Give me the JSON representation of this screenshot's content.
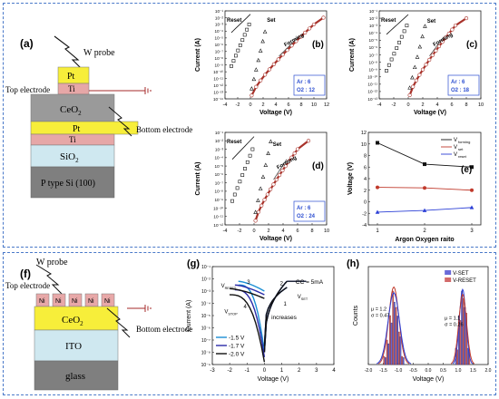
{
  "colors": {
    "frame": "#4a79c9",
    "pt": "#f7ee3a",
    "ti": "#e6a7a7",
    "ceo2": "#9a9a9a",
    "sio2": "#cfe8f0",
    "si": "#7f7f7f",
    "ito": "#cfe8f0",
    "glass": "#7f7f7f",
    "forming": "#a8322a",
    "vforming": "#111111",
    "vset": "#c0392b",
    "vreset": "#2b3fd6",
    "line15": "#1c8fd4",
    "line17": "#2a2aa8",
    "line20": "#111111",
    "hist_set": "#6a6ad8",
    "hist_reset": "#d36a6a",
    "gauss_set": "#2b3fd6",
    "gauss_reset": "#c0392b"
  },
  "panel_a": {
    "label": "(a)",
    "probe": "W probe",
    "top_electrode": "Top electrode",
    "bottom_electrode": "Bottom electrode",
    "layers": [
      "Pt",
      "Ti",
      "CeO",
      "Pt",
      "Ti",
      "SiO",
      "P type Si (100)"
    ],
    "ceo_sub": "2",
    "sio_sub": "2"
  },
  "panel_f": {
    "label": "(f)",
    "probe": "W probe",
    "top_electrode": "Top electrode",
    "bottom_electrode": "Bottom electrode",
    "electrode_label": "Ni",
    "layers": [
      "CeO",
      "ITO",
      "glass"
    ],
    "ceo_sub": "2"
  },
  "iv_panels": [
    {
      "label": "(b)",
      "ar": "Ar : 6",
      "o2": "O2 : 12",
      "set": "Set",
      "reset": "Reset",
      "forming": "Forming",
      "xlabel": "Voltage (V)",
      "ylabel": "Current (A)",
      "xticks": [
        "-4",
        "-2",
        "0",
        "2",
        "4",
        "6",
        "8",
        "10",
        "12"
      ],
      "yticks": [
        "10⁻¹",
        "10⁻²",
        "10⁻³",
        "10⁻⁴",
        "10⁻⁵",
        "10⁻⁶",
        "10⁻⁷",
        "10⁻⁸",
        "10⁻⁹",
        "10⁻¹⁰",
        "10⁻¹¹",
        "10⁻¹²",
        "10⁻¹³",
        "10⁻¹⁴"
      ],
      "form_end": 10,
      "y_plateau": 2
    },
    {
      "label": "(c)",
      "ar": "Ar : 6",
      "o2": "O2 : 18",
      "set": "Set",
      "reset": "Reset",
      "forming": "Forming",
      "xlabel": "Voltage (V)",
      "ylabel": "Current (A)",
      "xticks": [
        "-4",
        "-2",
        "0",
        "2",
        "4",
        "6",
        "8",
        "10"
      ],
      "yticks": [
        "10⁻¹",
        "10⁻²",
        "10⁻³",
        "10⁻⁴",
        "10⁻⁵",
        "10⁻⁶",
        "10⁻⁷",
        "10⁻⁸",
        "10⁻⁹",
        "10⁻¹⁰",
        "10⁻¹¹",
        "10⁻¹²",
        "10⁻¹³"
      ],
      "form_end": 6.5,
      "y_plateau": 2
    },
    {
      "label": "(d)",
      "ar": "Ar : 6",
      "o2": "O2 : 24",
      "set": "Set",
      "reset": "Reset",
      "forming": "Forming",
      "xlabel": "Voltage (V)",
      "ylabel": "Current (A)",
      "xticks": [
        "-4",
        "-2",
        "0",
        "2",
        "4",
        "6",
        "8",
        "10"
      ],
      "yticks": [
        "10⁻¹",
        "10⁻²",
        "10⁻³",
        "10⁻⁴",
        "10⁻⁵",
        "10⁻⁶",
        "10⁻⁷",
        "10⁻⁸",
        "10⁻⁹",
        "10⁻¹⁰",
        "10⁻¹¹",
        "10⁻¹²"
      ],
      "form_end": 6,
      "y_plateau": 2
    }
  ],
  "chart_data": [
    {
      "type": "line",
      "label": "(e)",
      "xlabel": "Argon Oxygen raito",
      "ylabel": "Voltage (V)",
      "x": [
        1,
        2,
        3
      ],
      "xticks": [
        "1",
        "2",
        "3"
      ],
      "yticks": [
        "-4",
        "-2",
        "0",
        "2",
        "4",
        "6",
        "8",
        "10",
        "12"
      ],
      "ylim": [
        -4,
        12
      ],
      "series": [
        {
          "name": "V",
          "sub": "forming",
          "values": [
            10.2,
            6.5,
            6.0
          ]
        },
        {
          "name": "V",
          "sub": "set",
          "values": [
            2.5,
            2.4,
            2.0
          ]
        },
        {
          "name": "V",
          "sub": "reset",
          "values": [
            -1.8,
            -1.5,
            -1.0
          ]
        }
      ]
    },
    {
      "type": "line",
      "label": "(g)",
      "xlabel": "Voltage (V)",
      "ylabel": "Current (A)",
      "xticks": [
        "-3",
        "-2",
        "-1",
        "0",
        "1",
        "2",
        "3",
        "4"
      ],
      "yticks": [
        "10⁻¹",
        "10⁻²",
        "10⁻³",
        "10⁻⁴",
        "10⁻⁵",
        "10⁻⁶",
        "10⁻⁷",
        "10⁻⁸",
        "10⁻⁹"
      ],
      "annotations": {
        "vreset": "V",
        "vreset_sub": "RESET",
        "vstop": "V",
        "vstop_sub": "STOP",
        "cc": "CC = 5mA",
        "vset": "V",
        "vset_sub": "SET",
        "increases": "increases"
      },
      "steps": [
        "1",
        "2",
        "3",
        "4"
      ],
      "series": [
        {
          "name": "-1.5 V",
          "stop": -1.5
        },
        {
          "name": "-1.7 V",
          "stop": -1.7
        },
        {
          "name": "-2.0 V",
          "stop": -2.0
        }
      ]
    },
    {
      "type": "bar",
      "label": "(h)",
      "xlabel": "Voltage (V)",
      "ylabel": "Counts",
      "xticks": [
        "-2.0",
        "-1.5",
        "-1.0",
        "-0.5",
        "0.0",
        "0.5",
        "1.0",
        "1.5",
        "2.0"
      ],
      "xlim": [
        -2.0,
        2.0
      ],
      "legend": [
        "V-SET",
        "V-RESET"
      ],
      "stats_reset": [
        "μ = 1.2",
        "σ = 0.47"
      ],
      "stats_set": [
        "μ = 1.1",
        "σ = 0.26"
      ],
      "reset_bins": [
        -1.45,
        -1.35,
        -1.25,
        -1.15,
        -1.05,
        -0.95,
        -0.85
      ],
      "reset_counts": [
        1,
        3,
        6,
        9,
        7,
        4,
        1
      ],
      "set_bins": [
        0.95,
        1.05,
        1.15,
        1.25,
        1.35
      ],
      "set_counts": [
        2,
        6,
        9,
        7,
        2
      ]
    }
  ]
}
